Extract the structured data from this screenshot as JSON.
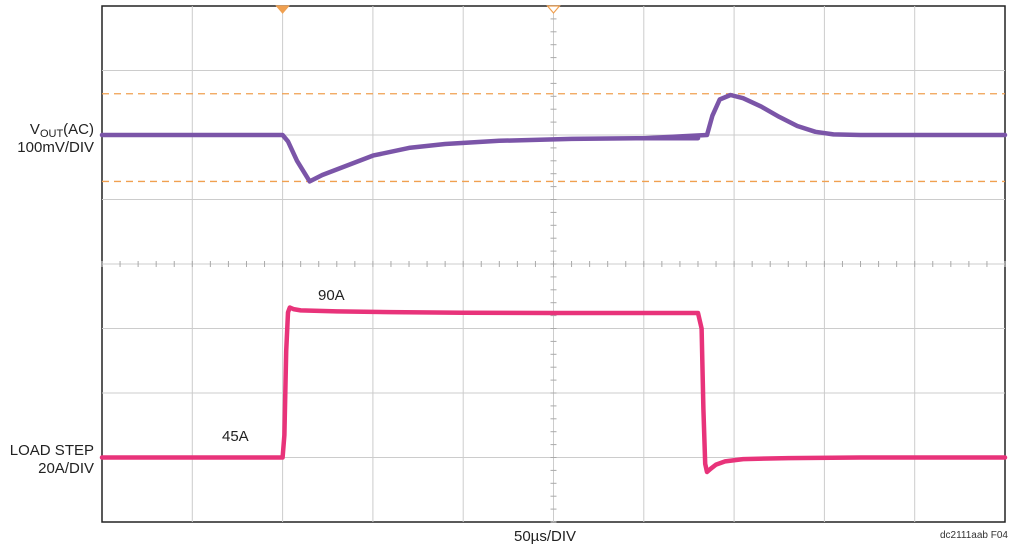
{
  "labels": {
    "vout_v": "V",
    "vout_sub": "OUT",
    "vout_ac": "(AC)",
    "vout_scale": "100mV/DIV",
    "load_title": "LOAD STEP",
    "load_scale": "20A/DIV",
    "xlabel": "50µs/DIV",
    "figure_id": "dc2111aab F04"
  },
  "chart_data": {
    "type": "line",
    "title": "",
    "xlabel": "50µs/DIV",
    "grid": true,
    "divisions": {
      "x": 10,
      "y": 8
    },
    "time_per_div_us": 50,
    "xlim_us": [
      0,
      500
    ],
    "colors": {
      "vout": "#7b55a8",
      "load": "#e8337a",
      "cursor": "#f0a050",
      "grid": "#cccccc"
    },
    "series": [
      {
        "name": "VOUT(AC)",
        "scale": "100mV/DIV",
        "unit": "mV",
        "x": [
          0,
          100,
          103,
          108,
          115,
          122,
          135,
          150,
          170,
          190,
          220,
          260,
          300,
          330,
          300,
          335,
          338,
          342,
          348,
          355,
          365,
          375,
          385,
          395,
          405,
          420,
          450,
          500
        ],
        "y": [
          0,
          0,
          -10,
          -40,
          -72,
          -62,
          -48,
          -32,
          -20,
          -14,
          -9,
          -6,
          -5,
          -5,
          -5,
          0,
          30,
          55,
          62,
          57,
          44,
          28,
          14,
          5,
          1,
          0,
          0,
          0
        ]
      },
      {
        "name": "LOAD STEP",
        "scale": "20A/DIV",
        "unit": "A",
        "x": [
          0,
          100,
          101,
          102,
          103,
          104,
          106,
          110,
          130,
          160,
          200,
          250,
          300,
          330,
          332,
          333,
          334,
          335,
          337,
          340,
          345,
          355,
          380,
          420,
          500
        ],
        "y": [
          45,
          45,
          52,
          78,
          90,
          91.5,
          91,
          90.6,
          90.3,
          90.1,
          89.9,
          89.8,
          89.8,
          89.8,
          85,
          60,
          43,
          40.5,
          41.5,
          42.8,
          43.8,
          44.5,
          44.8,
          45,
          45
        ]
      }
    ],
    "vout_cursor_levels_mV": [
      64,
      -72
    ],
    "annotations": [
      "90A",
      "45A"
    ],
    "trigger_markers_us": [
      100,
      250
    ]
  }
}
